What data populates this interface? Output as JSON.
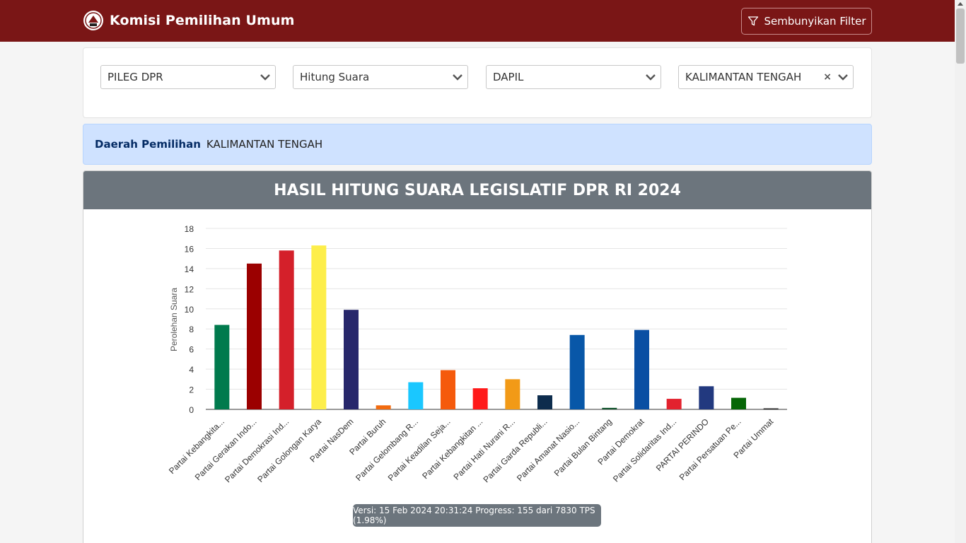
{
  "header": {
    "title": "Komisi Pemilihan Umum",
    "filter_button": "Sembunyikan Filter",
    "logo_icon": "kpu-logo-icon",
    "filter_icon": "filter-icon"
  },
  "filters": [
    {
      "value": "PILEG DPR"
    },
    {
      "value": "Hitung Suara"
    },
    {
      "value": "DAPIL"
    },
    {
      "value": "KALIMANTAN TENGAH",
      "clear": "×"
    }
  ],
  "region": {
    "label": "Daerah Pemilihan",
    "value": "KALIMANTAN TENGAH"
  },
  "chart_title": "HASIL HITUNG SUARA LEGISLATIF DPR RI 2024",
  "version_text": "Versi: 15 Feb 2024 20:31:24 Progress: 155 dari 7830 TPS (1.98%)",
  "chart_data": {
    "type": "bar",
    "ylabel": "Perolehan Suara",
    "ylim": [
      0,
      18
    ],
    "yticks": [
      0,
      2,
      4,
      6,
      8,
      10,
      12,
      14,
      16,
      18
    ],
    "grid": true,
    "categories": [
      "Partai Kebangkita...",
      "Partai Gerakan Indo...",
      "Partai Demokrasi Ind...",
      "Partai Golongan Karya",
      "Partai NasDem",
      "Partai Buruh",
      "Partai Gelombang R...",
      "Partai Keadilan Seja...",
      "Partai Kebangkitan ...",
      "Partai Hati Nurani R...",
      "Partai Garda Republi...",
      "Partai Amanat Nasio...",
      "Partai Bulan Bintang",
      "Partai Demokrat",
      "Partai Solidaritas Ind...",
      "PARTAI PERINDO",
      "Partai Persatuan Pe...",
      "Partai Ummat"
    ],
    "values": [
      8.4,
      14.5,
      15.8,
      16.3,
      9.9,
      0.4,
      2.7,
      3.9,
      2.1,
      3.0,
      1.4,
      7.4,
      0.15,
      7.9,
      1.05,
      2.3,
      1.15,
      0.1
    ],
    "colors": [
      "#007a4d",
      "#9b0000",
      "#d4202a",
      "#fdee4a",
      "#27276b",
      "#f26b0f",
      "#1ac7ff",
      "#f55a0c",
      "#ff1a1a",
      "#f29a17",
      "#0d2c4d",
      "#0857a8",
      "#0d5028",
      "#0a4fa3",
      "#e3222e",
      "#22397f",
      "#066607",
      "#1a1a1a"
    ]
  }
}
